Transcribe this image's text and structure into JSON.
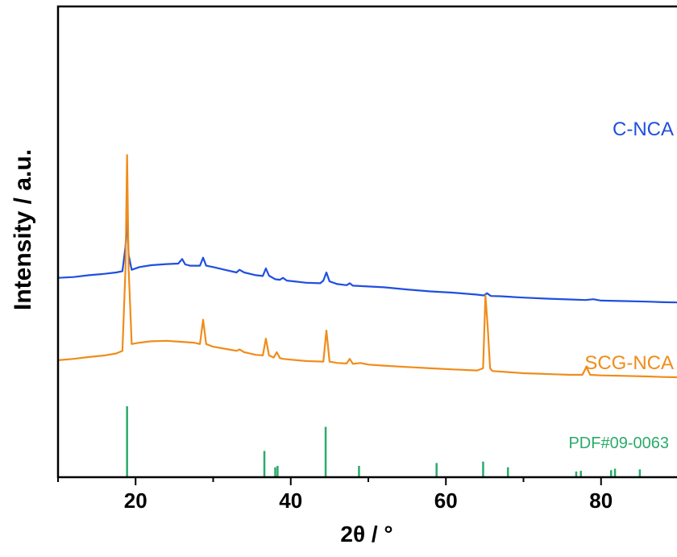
{
  "chart_data": {
    "type": "line",
    "title": "",
    "xlabel": "2θ / °",
    "ylabel": "Intensity / a.u.",
    "xlim": [
      10,
      90
    ],
    "xticks": [
      20,
      40,
      60,
      80
    ],
    "grid": false,
    "y_tick_labels": false,
    "series": [
      {
        "name": "C-NCA",
        "color": "#1f4fe0",
        "x": [
          10,
          12,
          14,
          16,
          17.5,
          18.3,
          18.7,
          18.9,
          19.1,
          19.5,
          20.5,
          22,
          24,
          25.5,
          26,
          26.4,
          27,
          28.3,
          28.7,
          29.1,
          30,
          31.5,
          33,
          33.4,
          34,
          35.5,
          36.4,
          36.8,
          37.2,
          38,
          38.6,
          39,
          39.5,
          40.5,
          42,
          43.8,
          44.2,
          44.6,
          45,
          46,
          47.2,
          47.6,
          48,
          50,
          52,
          55,
          58,
          61,
          64,
          64.9,
          65.3,
          65.8,
          67,
          70,
          73,
          76,
          78,
          79,
          80,
          83,
          86,
          88,
          90
        ],
        "y": [
          0.365,
          0.368,
          0.375,
          0.38,
          0.385,
          0.39,
          0.48,
          0.585,
          0.45,
          0.395,
          0.405,
          0.412,
          0.416,
          0.418,
          0.435,
          0.415,
          0.41,
          0.41,
          0.44,
          0.41,
          0.405,
          0.395,
          0.385,
          0.395,
          0.385,
          0.375,
          0.372,
          0.4,
          0.373,
          0.36,
          0.358,
          0.365,
          0.355,
          0.352,
          0.347,
          0.345,
          0.355,
          0.385,
          0.352,
          0.342,
          0.338,
          0.345,
          0.336,
          0.333,
          0.33,
          0.322,
          0.315,
          0.31,
          0.303,
          0.3,
          0.308,
          0.298,
          0.297,
          0.292,
          0.288,
          0.285,
          0.283,
          0.286,
          0.281,
          0.279,
          0.277,
          0.275,
          0.274
        ]
      },
      {
        "name": "SCG-NCA",
        "color": "#f08c1a",
        "x": [
          10,
          12,
          14,
          16,
          17.5,
          18.3,
          18.7,
          18.9,
          19.1,
          19.5,
          20.5,
          22,
          24,
          26,
          27.5,
          28.3,
          28.7,
          29.1,
          30,
          32,
          33,
          33.4,
          34,
          35.5,
          36.4,
          36.8,
          37.2,
          37.8,
          38.2,
          38.6,
          39,
          40,
          42,
          44.2,
          44.6,
          45,
          46,
          47.2,
          47.6,
          48,
          49,
          50,
          52,
          55,
          58,
          61,
          64,
          64.8,
          65.1,
          65.4,
          65.7,
          66,
          68,
          70,
          72,
          74,
          76,
          77.6,
          78.1,
          78.6,
          80,
          83,
          86,
          88,
          90
        ],
        "y": [
          0.06,
          0.065,
          0.072,
          0.078,
          0.085,
          0.095,
          0.4,
          0.82,
          0.4,
          0.12,
          0.125,
          0.13,
          0.132,
          0.128,
          0.125,
          0.12,
          0.21,
          0.12,
          0.11,
          0.1,
          0.095,
          0.1,
          0.09,
          0.08,
          0.078,
          0.14,
          0.078,
          0.07,
          0.09,
          0.068,
          0.065,
          0.062,
          0.057,
          0.055,
          0.17,
          0.055,
          0.05,
          0.048,
          0.065,
          0.047,
          0.05,
          0.044,
          0.04,
          0.035,
          0.03,
          0.026,
          0.022,
          0.03,
          0.3,
          0.18,
          0.03,
          0.02,
          0.016,
          0.012,
          0.01,
          0.008,
          0.006,
          0.006,
          0.035,
          0.006,
          0.004,
          0.002,
          0.0,
          -0.002,
          -0.003
        ]
      }
    ],
    "reference": {
      "name": "PDF#09-0063",
      "color": "#2aab6a",
      "x": [
        18.9,
        36.6,
        38.0,
        38.3,
        44.5,
        48.8,
        58.8,
        64.8,
        68.0,
        76.8,
        77.4,
        81.3,
        81.8,
        85.0
      ],
      "intensity": [
        1.0,
        0.37,
        0.14,
        0.16,
        0.71,
        0.16,
        0.2,
        0.22,
        0.14,
        0.08,
        0.09,
        0.1,
        0.12,
        0.11
      ]
    }
  }
}
